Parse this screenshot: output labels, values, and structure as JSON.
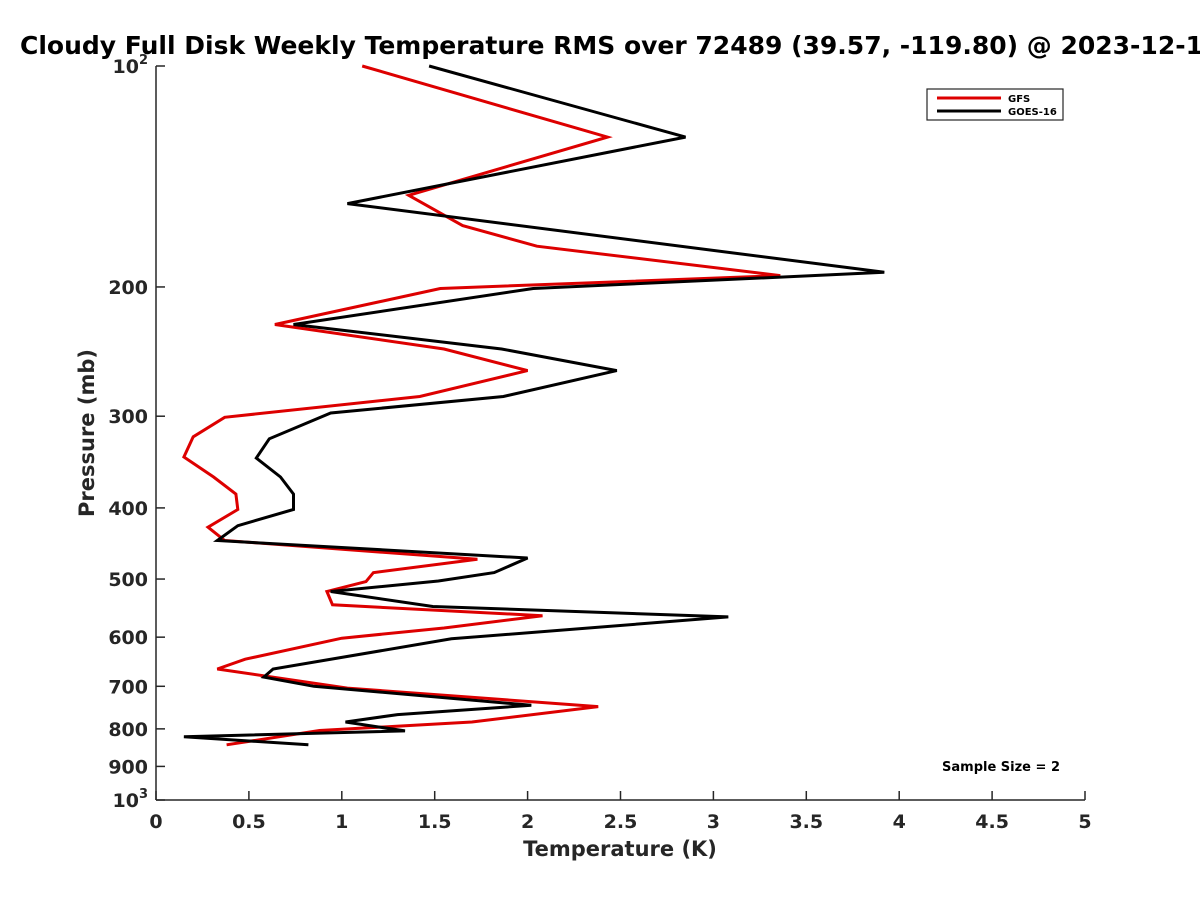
{
  "chart_data": {
    "type": "line",
    "title": "Cloudy Full Disk Weekly Temperature RMS over 72489 (39.57, -119.80) @ 2023-12-1",
    "xlabel": "Temperature (K)",
    "ylabel": "Pressure (mb)",
    "xlim": [
      0,
      5
    ],
    "ylim": [
      100,
      1000
    ],
    "y_scale": "log",
    "y_reversed": true,
    "x_ticks": [
      "0",
      "0.5",
      "1",
      "1.5",
      "2",
      "2.5",
      "3",
      "3.5",
      "4",
      "4.5",
      "5"
    ],
    "y_tick_values": [
      100,
      200,
      300,
      400,
      500,
      600,
      700,
      800,
      900,
      1000
    ],
    "y_tick_labels": [
      {
        "base": "10",
        "exp": "2"
      },
      {
        "base": "200"
      },
      {
        "base": "300"
      },
      {
        "base": "400"
      },
      {
        "base": "500"
      },
      {
        "base": "600"
      },
      {
        "base": "700"
      },
      {
        "base": "800"
      },
      {
        "base": "900"
      },
      {
        "base": "10",
        "exp": "3"
      }
    ],
    "grid": false,
    "legend_position": "top-right",
    "annotation": "Sample Size = 2",
    "series": [
      {
        "name": "GFS",
        "color": "#dd0000",
        "points": [
          [
            1.11,
            100
          ],
          [
            2.43,
            125
          ],
          [
            1.36,
            150
          ],
          [
            1.65,
            165
          ],
          [
            2.05,
            176
          ],
          [
            3.36,
            193
          ],
          [
            1.53,
            201
          ],
          [
            0.64,
            225
          ],
          [
            1.55,
            243
          ],
          [
            2.0,
            260
          ],
          [
            1.42,
            282
          ],
          [
            0.37,
            301
          ],
          [
            0.2,
            320
          ],
          [
            0.15,
            341
          ],
          [
            0.31,
            363
          ],
          [
            0.43,
            383
          ],
          [
            0.44,
            402
          ],
          [
            0.28,
            425
          ],
          [
            0.37,
            443
          ],
          [
            1.73,
            470
          ],
          [
            1.17,
            490
          ],
          [
            1.13,
            504
          ],
          [
            0.92,
            520
          ],
          [
            0.95,
            542
          ],
          [
            2.08,
            561
          ],
          [
            1.55,
            583
          ],
          [
            1.0,
            602
          ],
          [
            0.48,
            643
          ],
          [
            0.33,
            663
          ],
          [
            1.03,
            704
          ],
          [
            2.38,
            746
          ],
          [
            1.7,
            783
          ],
          [
            0.88,
            804
          ],
          [
            0.38,
            841
          ]
        ]
      },
      {
        "name": "GOES-16",
        "color": "#000000",
        "points": [
          [
            1.47,
            100
          ],
          [
            2.85,
            125
          ],
          [
            1.03,
            154
          ],
          [
            3.92,
            191
          ],
          [
            2.03,
            201
          ],
          [
            0.74,
            225
          ],
          [
            1.86,
            243
          ],
          [
            2.48,
            260
          ],
          [
            1.87,
            282
          ],
          [
            0.94,
            297
          ],
          [
            0.61,
            322
          ],
          [
            0.54,
            342
          ],
          [
            0.67,
            363
          ],
          [
            0.74,
            383
          ],
          [
            0.74,
            402
          ],
          [
            0.44,
            423
          ],
          [
            0.33,
            443
          ],
          [
            2.0,
            468
          ],
          [
            1.82,
            490
          ],
          [
            1.52,
            503
          ],
          [
            0.94,
            520
          ],
          [
            1.49,
            545
          ],
          [
            3.08,
            563
          ],
          [
            1.59,
            603
          ],
          [
            0.63,
            663
          ],
          [
            0.58,
            680
          ],
          [
            0.85,
            700
          ],
          [
            2.02,
            743
          ],
          [
            1.3,
            765
          ],
          [
            1.02,
            783
          ],
          [
            1.34,
            805
          ],
          [
            0.15,
            820
          ],
          [
            0.82,
            841
          ]
        ]
      }
    ]
  }
}
